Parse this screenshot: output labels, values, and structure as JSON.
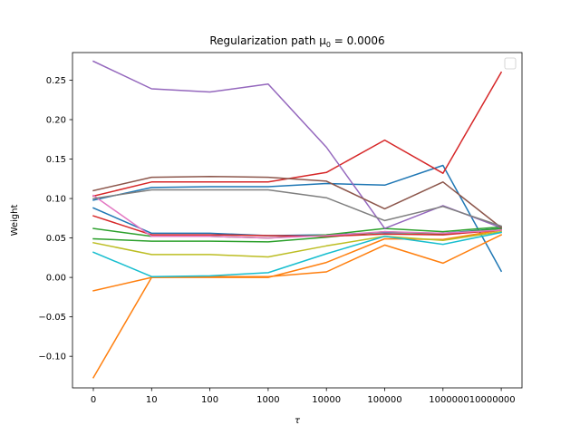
{
  "chart_data": {
    "type": "line",
    "title": "Regularization path μ",
    "title_sub": "0",
    "title_rest": " = 0.0006",
    "xlabel": "τ",
    "ylabel": "Weight",
    "x": [
      "0",
      "10",
      "100",
      "1000",
      "10000",
      "100000",
      "1000000",
      "10000000"
    ],
    "xticks_text": [
      "0",
      "10",
      "100",
      "1000",
      "10000",
      "100000",
      "100000010000000"
    ],
    "ylim": [
      -0.14,
      0.285
    ],
    "yticks": [
      -0.1,
      -0.05,
      0.0,
      0.05,
      0.1,
      0.15,
      0.2,
      0.25
    ],
    "ytick_labels": [
      "−0.10",
      "−0.05",
      "0.00",
      "0.05",
      "0.10",
      "0.15",
      "0.20",
      "0.25"
    ],
    "grid": false,
    "legend": "upper-right (empty)",
    "series": [
      {
        "color": "#1f77b4",
        "values": [
          0.088,
          0.056,
          0.056,
          0.053,
          0.054,
          0.057,
          0.056,
          0.062
        ]
      },
      {
        "color": "#1f77b4",
        "values": [
          0.098,
          0.114,
          0.115,
          0.115,
          0.119,
          0.117,
          0.142,
          0.008
        ]
      },
      {
        "color": "#ff7f0e",
        "values": [
          -0.127,
          0.0,
          0.001,
          0.001,
          0.007,
          0.041,
          0.018,
          0.054
        ]
      },
      {
        "color": "#ff7f0e",
        "values": [
          -0.017,
          0.0,
          0.0,
          0.0,
          0.019,
          0.049,
          0.048,
          0.06
        ]
      },
      {
        "color": "#2ca02c",
        "values": [
          0.062,
          0.052,
          0.052,
          0.05,
          0.054,
          0.062,
          0.058,
          0.064
        ]
      },
      {
        "color": "#2ca02c",
        "values": [
          0.049,
          0.046,
          0.046,
          0.045,
          0.051,
          0.058,
          0.055,
          0.062
        ]
      },
      {
        "color": "#d62728",
        "values": [
          0.078,
          0.054,
          0.054,
          0.053,
          0.052,
          0.055,
          0.054,
          0.06
        ]
      },
      {
        "color": "#d62728",
        "values": [
          0.103,
          0.121,
          0.121,
          0.121,
          0.133,
          0.174,
          0.132,
          0.26
        ]
      },
      {
        "color": "#9467bd",
        "values": [
          0.274,
          0.239,
          0.235,
          0.245,
          0.165,
          0.062,
          0.091,
          0.063
        ]
      },
      {
        "color": "#8c564b",
        "values": [
          0.11,
          0.127,
          0.128,
          0.127,
          0.122,
          0.087,
          0.121,
          0.063
        ]
      },
      {
        "color": "#e377c2",
        "values": [
          0.104,
          0.052,
          0.052,
          0.05,
          0.053,
          0.058,
          0.056,
          0.06
        ]
      },
      {
        "color": "#7f7f7f",
        "values": [
          0.1,
          0.111,
          0.111,
          0.111,
          0.101,
          0.072,
          0.09,
          0.065
        ]
      },
      {
        "color": "#bcbd22",
        "values": [
          0.044,
          0.029,
          0.029,
          0.026,
          0.04,
          0.052,
          0.047,
          0.058
        ]
      },
      {
        "color": "#17becf",
        "values": [
          0.032,
          0.001,
          0.002,
          0.006,
          0.03,
          0.052,
          0.042,
          0.057
        ]
      }
    ]
  }
}
